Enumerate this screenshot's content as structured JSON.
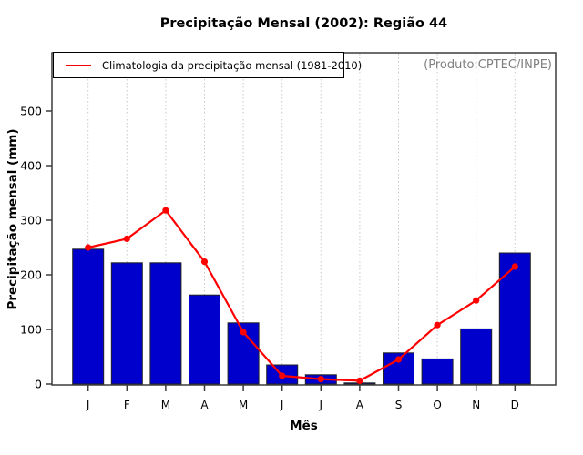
{
  "header": {
    "title": "Precipitação Mensal (2002): Região 44"
  },
  "legend": {
    "label": "Climatologia da precipitação mensal (1981-2010)"
  },
  "annotation": {
    "produto": "(Produto:CPTEC/INPE)"
  },
  "colors": {
    "bar_fill": "#0000CD",
    "bar_border": "#222222",
    "climatology_line": "#FF0000",
    "axis": "#3c3c3c",
    "gridline": "#c8c8c8",
    "annotation_gray": "#7f7f7f"
  },
  "chart_data": {
    "type": "bar",
    "title": "Precipitação Mensal (2002): Região 44",
    "xlabel": "Mês",
    "ylabel": "Precipitação mensal (mm)",
    "categories": [
      "J",
      "F",
      "M",
      "A",
      "M",
      "J",
      "J",
      "A",
      "S",
      "O",
      "N",
      "D"
    ],
    "series": [
      {
        "name": "Precipitação mensal 2002",
        "type": "bar",
        "color": "#0000CD",
        "values": [
          247,
          222,
          222,
          163,
          112,
          35,
          17,
          2,
          57,
          46,
          101,
          240
        ]
      },
      {
        "name": "Climatologia da precipitação mensal (1981-2010)",
        "type": "line",
        "color": "#FF0000",
        "values": [
          250,
          266,
          318,
          224,
          95,
          15,
          9,
          6,
          45,
          108,
          153,
          215
        ]
      }
    ],
    "ylim": [
      0,
      610
    ],
    "yticks": [
      0,
      100,
      200,
      300,
      400,
      500
    ],
    "grid": "vertical-dotted-per-month",
    "legend_position": "top-left-inside",
    "annotation_position": "top-right-inside"
  }
}
